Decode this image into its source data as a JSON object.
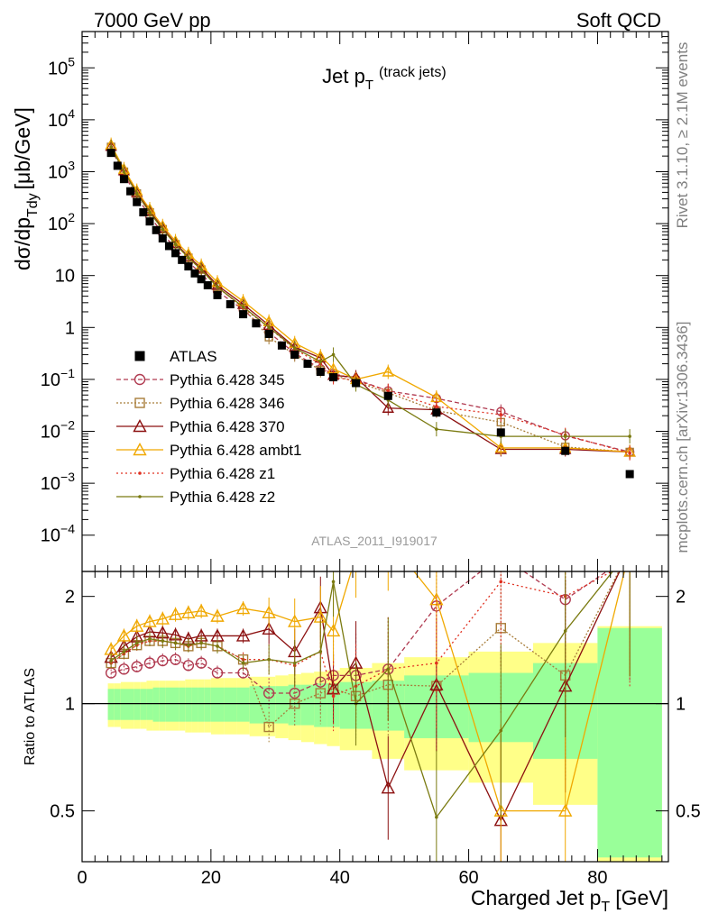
{
  "header": {
    "left": "7000 GeV pp",
    "right": "Soft QCD"
  },
  "side_labels": {
    "top": "Rivet 3.1.10, ≥ 2.1M events",
    "bottom": "mcplots.cern.ch [arXiv:1306.3436]"
  },
  "chart_data": [
    {
      "type": "scatter",
      "title_main": "Jet p",
      "title_sub": "T",
      "title_suffix": "(track jets)",
      "ylabel_main": "dσ/dp",
      "ylabel_sub": "Tdy",
      "ylabel_unit": "[μb/GeV]",
      "yscale": "log",
      "ylim": [
        2e-05,
        500000
      ],
      "xlim": [
        0,
        91
      ],
      "y_ticks": [
        {
          "v": 0.0001,
          "base": "10",
          "exp": "−4"
        },
        {
          "v": 0.001,
          "base": "10",
          "exp": "−3"
        },
        {
          "v": 0.01,
          "base": "10",
          "exp": "−2"
        },
        {
          "v": 0.1,
          "base": "10",
          "exp": "−1"
        },
        {
          "v": 1,
          "base": "1",
          "exp": ""
        },
        {
          "v": 10,
          "base": "10",
          "exp": ""
        },
        {
          "v": 100,
          "base": "10",
          "exp": "2"
        },
        {
          "v": 1000,
          "base": "10",
          "exp": "3"
        },
        {
          "v": 10000,
          "base": "10",
          "exp": "4"
        },
        {
          "v": 100000,
          "base": "10",
          "exp": "5"
        }
      ],
      "watermark": "ATLAS_2011_I919017",
      "legend_position": "bottom-left",
      "series": [
        {
          "name": "ATLAS",
          "color": "#000000",
          "marker": "square-filled",
          "dash": "none",
          "x": [
            4.5,
            5.5,
            6.5,
            7.5,
            8.5,
            9.5,
            10.5,
            11.5,
            12.5,
            13.5,
            14.5,
            15.5,
            16.5,
            17.5,
            18.5,
            19.5,
            21,
            23,
            25,
            27,
            29,
            31,
            33,
            35,
            37,
            39,
            42.5,
            47.5,
            55,
            65,
            75,
            85
          ],
          "y": [
            2300,
            1300,
            720,
            420,
            260,
            165,
            110,
            75,
            52,
            37,
            27,
            20,
            15,
            11,
            8.5,
            6.5,
            4.2,
            2.8,
            1.8,
            1.2,
            0.75,
            0.45,
            0.3,
            0.2,
            0.14,
            0.11,
            0.085,
            0.048,
            0.023,
            0.0095,
            0.0042,
            0.0015
          ]
        },
        {
          "name": "Pythia 6.428 345",
          "color": "#b03a50",
          "marker": "circle-open",
          "dash": "5,3",
          "x": [
            4.5,
            6.5,
            8.5,
            10.5,
            12.5,
            14.5,
            16.5,
            18.5,
            21,
            25,
            29,
            33,
            37,
            39,
            42.5,
            47.5,
            55,
            65,
            75,
            85
          ],
          "y": [
            2800,
            900,
            330,
            140,
            65,
            33,
            18,
            11,
            5,
            2.2,
            0.8,
            0.32,
            0.16,
            0.13,
            0.1,
            0.06,
            0.043,
            0.024,
            0.0082,
            0.004
          ]
        },
        {
          "name": "Pythia 6.428 346",
          "color": "#a87d3a",
          "marker": "square-open",
          "dash": "2,2",
          "x": [
            4.5,
            6.5,
            8.5,
            10.5,
            12.5,
            14.5,
            16.5,
            18.5,
            21,
            25,
            29,
            33,
            37,
            39,
            42.5,
            47.5,
            55,
            65,
            75,
            85
          ],
          "y": [
            3000,
            1000,
            380,
            165,
            78,
            40,
            22,
            13,
            6,
            2.4,
            0.65,
            0.3,
            0.15,
            0.12,
            0.09,
            0.055,
            0.025,
            0.015,
            0.005,
            0.004
          ]
        },
        {
          "name": "Pythia 6.428 370",
          "color": "#8c1010",
          "marker": "triangle-open",
          "dash": "none",
          "x": [
            4.5,
            6.5,
            8.5,
            10.5,
            12.5,
            14.5,
            16.5,
            18.5,
            21,
            25,
            29,
            33,
            37,
            39,
            42.5,
            47.5,
            55,
            65,
            75,
            85
          ],
          "y": [
            3100,
            1050,
            400,
            175,
            82,
            42,
            23,
            14,
            6.5,
            2.8,
            1.1,
            0.42,
            0.26,
            0.12,
            0.11,
            0.028,
            0.026,
            0.0045,
            0.0045,
            0.004
          ]
        },
        {
          "name": "Pythia 6.428 ambt1",
          "color": "#f0a800",
          "marker": "triangle-open",
          "dash": "none",
          "x": [
            4.5,
            6.5,
            8.5,
            10.5,
            12.5,
            14.5,
            16.5,
            18.5,
            21,
            25,
            29,
            33,
            37,
            39,
            42.5,
            47.5,
            55,
            65,
            75,
            85
          ],
          "y": [
            3300,
            1120,
            430,
            190,
            90,
            46,
            26,
            15.5,
            7.4,
            3.2,
            1.3,
            0.5,
            0.28,
            0.16,
            0.1,
            0.14,
            0.045,
            0.0048,
            0.0048,
            0.004
          ]
        },
        {
          "name": "Pythia 6.428 z1",
          "color": "#e03020",
          "marker": "dot",
          "dash": "2,3",
          "x": [
            4.5,
            6.5,
            8.5,
            10.5,
            12.5,
            14.5,
            16.5,
            18.5,
            21,
            25,
            29,
            33,
            37,
            39,
            42.5,
            47.5,
            55,
            65,
            75,
            85
          ],
          "y": [
            3000,
            1000,
            380,
            165,
            78,
            40,
            22,
            13,
            6,
            2.4,
            1.0,
            0.38,
            0.2,
            0.11,
            0.095,
            0.06,
            0.03,
            0.021,
            0.0085,
            0.0038
          ]
        },
        {
          "name": "Pythia 6.428 z2",
          "color": "#7a7a10",
          "marker": "dot",
          "dash": "none",
          "x": [
            4.5,
            6.5,
            8.5,
            10.5,
            12.5,
            14.5,
            16.5,
            18.5,
            21,
            25,
            29,
            33,
            37,
            39,
            42.5,
            47.5,
            55,
            65,
            75,
            85
          ],
          "y": [
            3000,
            1000,
            380,
            165,
            78,
            40,
            22,
            13,
            6,
            2.5,
            1.0,
            0.4,
            0.22,
            0.3,
            0.08,
            0.04,
            0.011,
            0.008,
            0.008,
            0.008
          ]
        }
      ]
    },
    {
      "type": "line",
      "ylabel": "Ratio to ATLAS",
      "xlabel_main": "Charged Jet p",
      "xlabel_sub": "T",
      "xlabel_unit": "[GeV]",
      "yscale": "log",
      "ylim": [
        0.36,
        2.35
      ],
      "xlim": [
        0,
        91
      ],
      "x_ticks": [
        0,
        20,
        40,
        60,
        80
      ],
      "y_ticks": [
        0.5,
        1,
        2
      ],
      "y_tick_labels": [
        "0.5",
        "1",
        "2"
      ],
      "uncertainty_bands": {
        "bins": [
          [
            4,
            5
          ],
          [
            5,
            6
          ],
          [
            6,
            7
          ],
          [
            7,
            8
          ],
          [
            8,
            9
          ],
          [
            9,
            10
          ],
          [
            10,
            11
          ],
          [
            11,
            12
          ],
          [
            12,
            13
          ],
          [
            13,
            14
          ],
          [
            14,
            15
          ],
          [
            15,
            16
          ],
          [
            16,
            17
          ],
          [
            17,
            18
          ],
          [
            18,
            19
          ],
          [
            19,
            20
          ],
          [
            20,
            22
          ],
          [
            22,
            24
          ],
          [
            24,
            26
          ],
          [
            26,
            28
          ],
          [
            28,
            30
          ],
          [
            30,
            32
          ],
          [
            32,
            34
          ],
          [
            34,
            36
          ],
          [
            36,
            38
          ],
          [
            38,
            40
          ],
          [
            40,
            45
          ],
          [
            45,
            50
          ],
          [
            50,
            60
          ],
          [
            60,
            70
          ],
          [
            70,
            80
          ],
          [
            80,
            90
          ]
        ],
        "green_half": [
          0.1,
          0.1,
          0.1,
          0.1,
          0.1,
          0.1,
          0.1,
          0.11,
          0.11,
          0.11,
          0.11,
          0.11,
          0.11,
          0.11,
          0.11,
          0.11,
          0.11,
          0.11,
          0.11,
          0.12,
          0.12,
          0.12,
          0.13,
          0.13,
          0.14,
          0.14,
          0.15,
          0.16,
          0.2,
          0.22,
          0.3,
          0.63
        ],
        "yellow_half": [
          0.14,
          0.14,
          0.15,
          0.15,
          0.15,
          0.15,
          0.16,
          0.16,
          0.16,
          0.16,
          0.16,
          0.16,
          0.17,
          0.17,
          0.17,
          0.17,
          0.18,
          0.18,
          0.18,
          0.19,
          0.19,
          0.2,
          0.21,
          0.22,
          0.23,
          0.24,
          0.26,
          0.3,
          0.35,
          0.4,
          0.48,
          0.65
        ],
        "green_color": "#99ff99",
        "yellow_color": "#ffff88"
      },
      "series": [
        {
          "name": "Pythia 6.428 345",
          "x": [
            4.5,
            6.5,
            8.5,
            10.5,
            12.5,
            14.5,
            16.5,
            18.5,
            21,
            25,
            29,
            33,
            37,
            39,
            42.5,
            47.5,
            55,
            65,
            75,
            85
          ],
          "y": [
            1.22,
            1.25,
            1.27,
            1.3,
            1.32,
            1.33,
            1.28,
            1.3,
            1.22,
            1.22,
            1.07,
            1.07,
            1.15,
            1.2,
            1.2,
            1.25,
            1.88,
            2.6,
            1.96,
            2.6
          ]
        },
        {
          "name": "Pythia 6.428 346",
          "x": [
            4.5,
            6.5,
            8.5,
            10.5,
            12.5,
            14.5,
            16.5,
            18.5,
            21,
            25,
            29,
            33,
            37,
            39,
            42.5,
            47.5,
            55,
            65,
            75,
            85
          ],
          "y": [
            1.3,
            1.38,
            1.46,
            1.5,
            1.5,
            1.48,
            1.45,
            1.48,
            1.45,
            1.33,
            0.86,
            1.0,
            1.07,
            1.1,
            1.05,
            1.13,
            1.12,
            1.63,
            1.2,
            2.7
          ]
        },
        {
          "name": "Pythia 6.428 370",
          "x": [
            4.5,
            6.5,
            8.5,
            10.5,
            12.5,
            14.5,
            16.5,
            18.5,
            21,
            25,
            29,
            33,
            37,
            39,
            42.5,
            47.5,
            55,
            65,
            75,
            85
          ],
          "y": [
            1.35,
            1.45,
            1.54,
            1.59,
            1.58,
            1.56,
            1.52,
            1.55,
            1.55,
            1.55,
            1.62,
            1.4,
            1.86,
            1.1,
            1.3,
            0.58,
            1.13,
            0.47,
            1.12,
            2.7
          ]
        },
        {
          "name": "Pythia 6.428 ambt1",
          "x": [
            4.5,
            6.5,
            8.5,
            10.5,
            12.5,
            14.5,
            16.5,
            18.5,
            21,
            25,
            29,
            33,
            37,
            39,
            42.5,
            47.5,
            55,
            65,
            75,
            85
          ],
          "y": [
            1.42,
            1.55,
            1.65,
            1.7,
            1.73,
            1.78,
            1.8,
            1.82,
            1.76,
            1.85,
            1.8,
            1.7,
            1.75,
            1.6,
            2.6,
            2.9,
            1.96,
            0.5,
            0.5,
            2.7
          ]
        },
        {
          "name": "Pythia 6.428 z1",
          "x": [
            4.5,
            6.5,
            8.5,
            10.5,
            12.5,
            14.5,
            16.5,
            18.5,
            21,
            25,
            29,
            33,
            37,
            39,
            42.5,
            47.5,
            55,
            65,
            75,
            85
          ],
          "y": [
            1.3,
            1.38,
            1.46,
            1.5,
            1.5,
            1.48,
            1.45,
            1.48,
            1.45,
            1.33,
            1.33,
            1.28,
            1.4,
            1.05,
            1.12,
            1.25,
            1.3,
            2.2,
            2.0,
            2.5
          ]
        },
        {
          "name": "Pythia 6.428 z2",
          "x": [
            4.5,
            6.5,
            8.5,
            10.5,
            12.5,
            14.5,
            16.5,
            18.5,
            21,
            25,
            29,
            33,
            37,
            39,
            42.5,
            47.5,
            55,
            65,
            75,
            85
          ],
          "y": [
            1.32,
            1.4,
            1.48,
            1.52,
            1.5,
            1.48,
            1.46,
            1.48,
            1.45,
            1.3,
            1.33,
            1.3,
            1.4,
            2.2,
            1.0,
            1.25,
            0.48,
            0.84,
            1.6,
            2.7
          ]
        }
      ]
    }
  ]
}
